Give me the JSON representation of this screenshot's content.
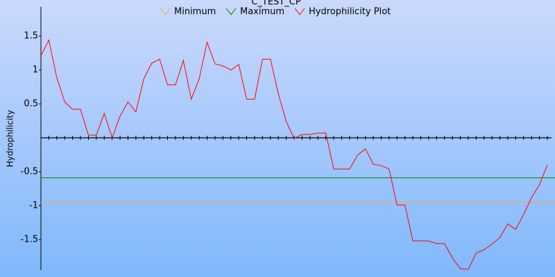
{
  "chart_data": {
    "type": "line",
    "title": "C_TEST_CP",
    "y_label": "Hydrophilicity",
    "ylim": [
      -1.95,
      1.93
    ],
    "yticks": [
      -1.5,
      -1,
      -0.5,
      0.5,
      1,
      1.5
    ],
    "series": [
      {
        "name": "Minimum",
        "color": "#f0a838",
        "values": [
          -0.95
        ]
      },
      {
        "name": "Maximum",
        "color": "#008000",
        "values": [
          -0.59
        ]
      },
      {
        "name": "Hydrophilicity Plot",
        "color": "#ff0000",
        "values": [
          1.21,
          1.44,
          0.89,
          0.53,
          0.42,
          0.42,
          0.04,
          0.04,
          0.36,
          0,
          0.32,
          0.53,
          0.38,
          0.87,
          1.1,
          1.16,
          0.78,
          0.78,
          1.14,
          0.57,
          0.87,
          1.41,
          1.09,
          1.06,
          1.0,
          1.08,
          0.57,
          0.57,
          1.16,
          1.16,
          0.65,
          0.24,
          -0.01,
          0.05,
          0.05,
          0.07,
          0.07,
          -0.46,
          -0.46,
          -0.46,
          -0.26,
          -0.16,
          -0.39,
          -0.41,
          -0.46,
          -0.99,
          -0.99,
          -1.52,
          -1.52,
          -1.52,
          -1.56,
          -1.56,
          -1.77,
          -1.93,
          -1.94,
          -1.7,
          -1.65,
          -1.57,
          -1.47,
          -1.27,
          -1.35,
          -1.13,
          -0.88,
          -0.69,
          -0.4
        ]
      }
    ]
  }
}
